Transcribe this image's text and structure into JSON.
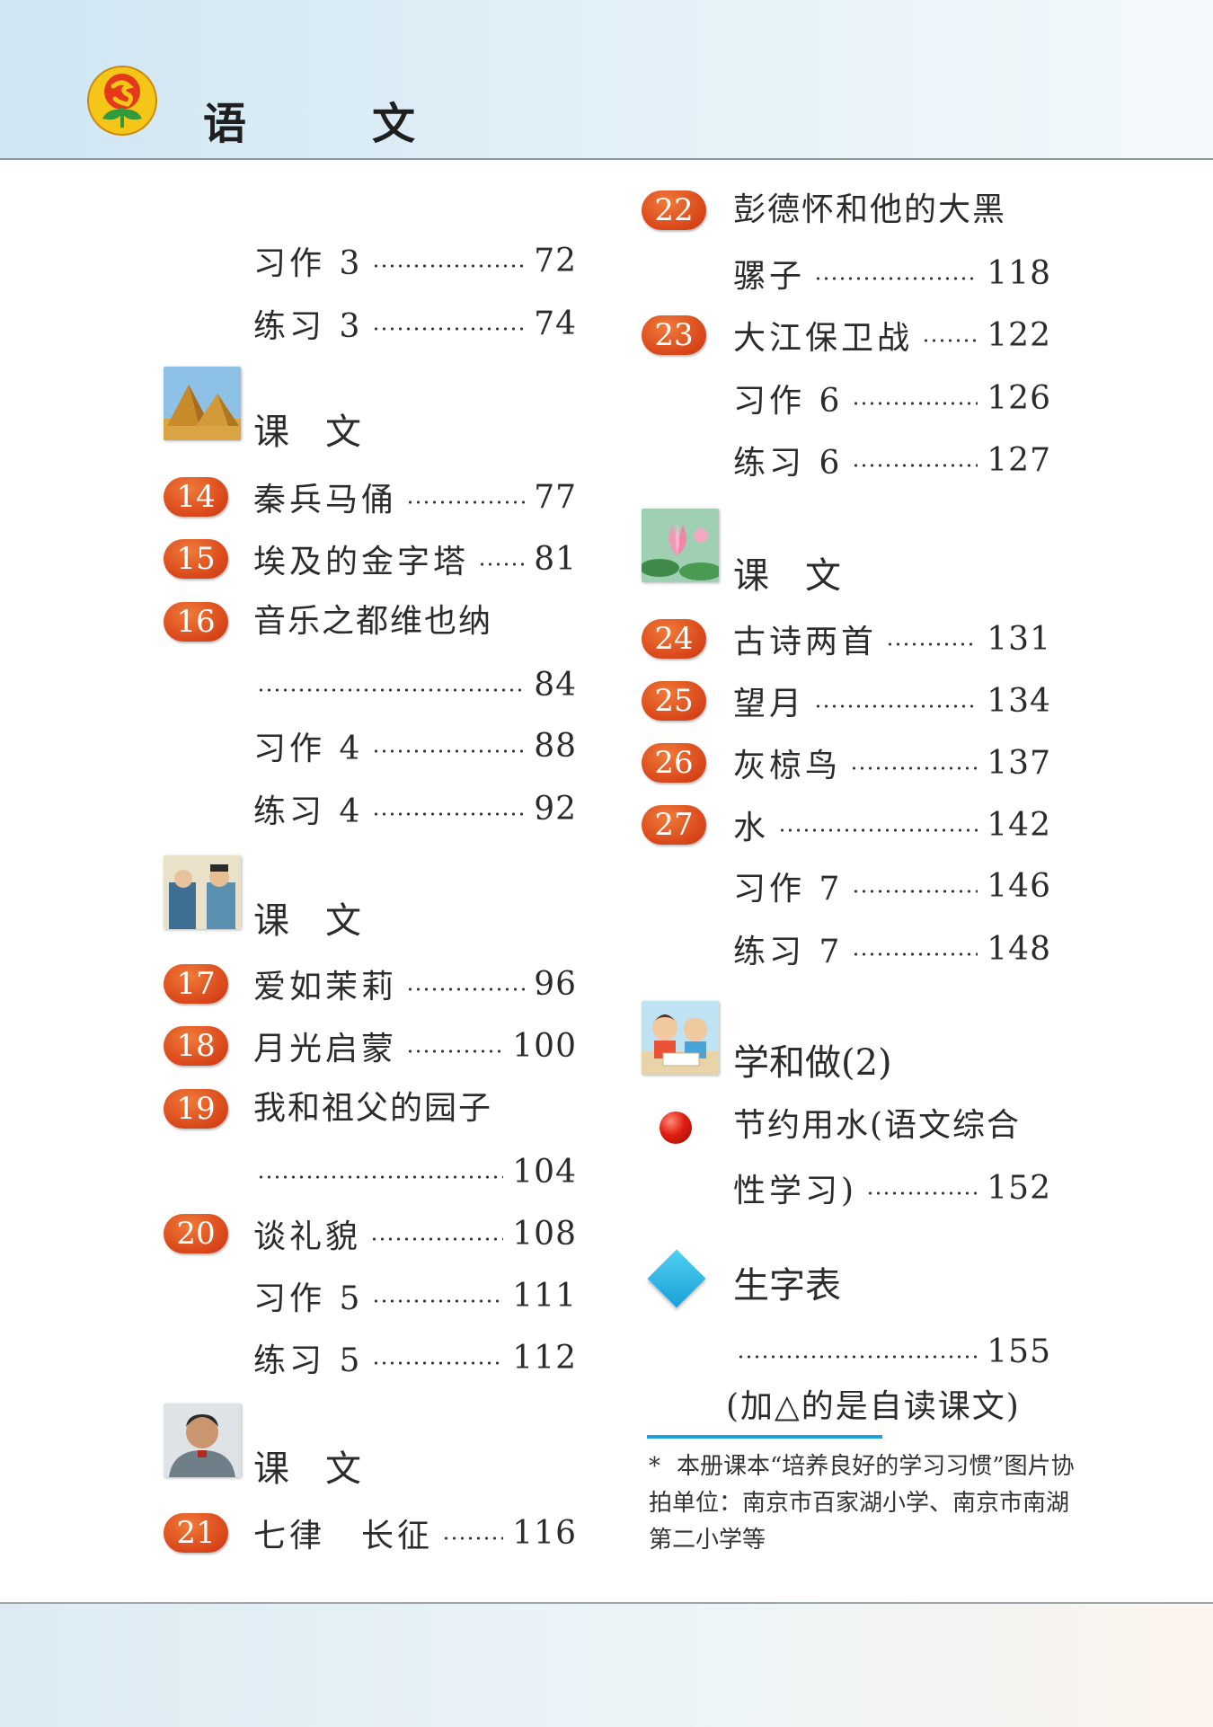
{
  "header": {
    "title": "语　文"
  },
  "left": {
    "r1": {
      "label": "习作 3",
      "page": "72"
    },
    "r2": {
      "label": "练习 3",
      "page": "74"
    },
    "sec1": {
      "title": "课文"
    },
    "r3": {
      "num": "14",
      "label": "秦兵马俑",
      "page": "77"
    },
    "r4": {
      "num": "15",
      "label": "埃及的金字塔",
      "page": "81"
    },
    "r5": {
      "num": "16",
      "label": "音乐之都维也纳",
      "page": "84"
    },
    "r6": {
      "label": "习作 4",
      "page": "88"
    },
    "r7": {
      "label": "练习 4",
      "page": "92"
    },
    "sec2": {
      "title": "课文"
    },
    "r8": {
      "num": "17",
      "label": "爱如茉莉",
      "page": "96"
    },
    "r9": {
      "num": "18",
      "label": "月光启蒙",
      "page": "100"
    },
    "r10": {
      "num": "19",
      "label": "我和祖父的园子",
      "page": "104"
    },
    "r11": {
      "num": "20",
      "label": "谈礼貌",
      "page": "108"
    },
    "r12": {
      "label": "习作 5",
      "page": "111"
    },
    "r13": {
      "label": "练习 5",
      "page": "112"
    },
    "sec3": {
      "title": "课文"
    },
    "r14": {
      "num": "21",
      "label": "七律　长征",
      "page": "116"
    }
  },
  "right": {
    "r1": {
      "num": "22",
      "label1": "彭德怀和他的大黑",
      "label2": "骡子",
      "page": "118"
    },
    "r2": {
      "num": "23",
      "label": "大江保卫战",
      "page": "122"
    },
    "r3": {
      "label": "习作 6",
      "page": "126"
    },
    "r4": {
      "label": "练习 6",
      "page": "127"
    },
    "sec1": {
      "title": "课文"
    },
    "r5": {
      "num": "24",
      "label": "古诗两首",
      "page": "131"
    },
    "r6": {
      "num": "25",
      "label": "望月",
      "page": "134"
    },
    "r7": {
      "num": "26",
      "label": "灰椋鸟",
      "page": "137"
    },
    "r8": {
      "num": "27",
      "label": "水",
      "page": "142"
    },
    "r9": {
      "label": "习作 7",
      "page": "146"
    },
    "r10": {
      "label": "练习 7",
      "page": "148"
    },
    "sec2": {
      "title": "学和做(2)"
    },
    "r11": {
      "label1": "节约用水(语文综合",
      "label2": "性学习)",
      "page": "152"
    },
    "sec3": {
      "title": "生字表"
    },
    "r12": {
      "page": "155"
    },
    "hint": "(加△的是自读课文)",
    "note": {
      "star": "*",
      "text": "本册课本“培养良好的学习习惯”图片协拍单位：南京市百家湖小学、南京市南湖第二小学等"
    }
  },
  "colors": {
    "badge": "#d9461a",
    "accent_line": "#1ea0dc",
    "header_bg": "#d6eaf5"
  },
  "icons": {
    "logo": "sunflower-logo-icon",
    "thumbs": [
      "pyramids-thumbnail",
      "two-people-thumbnail",
      "marshal-portrait-thumbnail",
      "lotus-thumbnail",
      "children-reading-thumbnail"
    ],
    "bullet": "red-dot-icon",
    "diamond": "blue-diamond-icon"
  }
}
